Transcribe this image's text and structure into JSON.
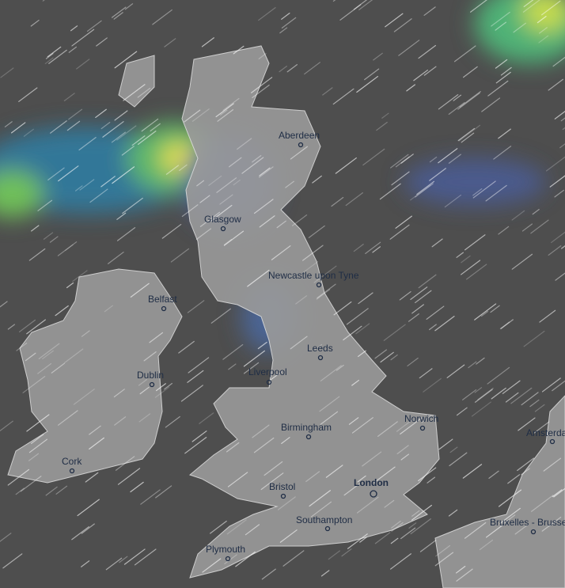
{
  "cities": [
    "Aberdeen",
    "Glasgow",
    "Newcastle upon Tyne",
    "Belfast",
    "Leeds",
    "Liverpool",
    "Dublin",
    "Norwich",
    "Birmingham",
    "Amsterdam",
    "Cork",
    "Bristol",
    "London",
    "Southampton",
    "Bruxelles - Brussel",
    "Plymouth"
  ]
}
